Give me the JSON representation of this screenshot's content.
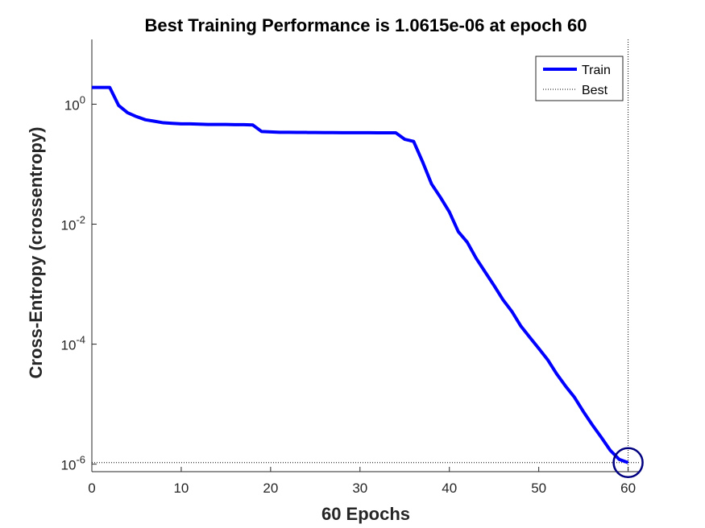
{
  "chart_data": {
    "type": "line",
    "title": "Best Training Performance is 1.0615e-06 at epoch 60",
    "xlabel": "60 Epochs",
    "ylabel": "Cross-Entropy  (crossentropy)",
    "xlim": [
      0,
      61.3
    ],
    "ylim": [
      7.5e-07,
      12
    ],
    "yscale": "log",
    "grid": false,
    "legend_position": "top-right",
    "x_ticks": [
      {
        "value": 0,
        "label": "0"
      },
      {
        "value": 10,
        "label": "10"
      },
      {
        "value": 20,
        "label": "20"
      },
      {
        "value": 30,
        "label": "30"
      },
      {
        "value": 40,
        "label": "40"
      },
      {
        "value": 50,
        "label": "50"
      },
      {
        "value": 60,
        "label": "60"
      }
    ],
    "y_ticks": [
      {
        "value": 1,
        "base": "10",
        "exp": "0"
      },
      {
        "value": 0.01,
        "base": "10",
        "exp": "-2"
      },
      {
        "value": 0.0001,
        "base": "10",
        "exp": "-4"
      },
      {
        "value": 1e-06,
        "base": "10",
        "exp": "-6"
      }
    ],
    "series": [
      {
        "name": "Train",
        "color": "#0000ff",
        "x": [
          0,
          1,
          2,
          3,
          4,
          5,
          6,
          7,
          8,
          9,
          10,
          11,
          12,
          13,
          14,
          15,
          16,
          17,
          18,
          19,
          20,
          21,
          22,
          23,
          24,
          25,
          26,
          27,
          28,
          29,
          30,
          31,
          32,
          33,
          34,
          35,
          36,
          37,
          38,
          39,
          40,
          41,
          42,
          43,
          44,
          45,
          46,
          47,
          48,
          49,
          50,
          51,
          52,
          53,
          54,
          55,
          56,
          57,
          58,
          59,
          60
        ],
        "y": [
          1.9,
          1.9,
          1.9,
          0.95,
          0.72,
          0.62,
          0.55,
          0.52,
          0.49,
          0.48,
          0.47,
          0.47,
          0.465,
          0.46,
          0.46,
          0.46,
          0.455,
          0.455,
          0.45,
          0.35,
          0.345,
          0.34,
          0.34,
          0.338,
          0.338,
          0.337,
          0.336,
          0.336,
          0.335,
          0.335,
          0.335,
          0.335,
          0.334,
          0.334,
          0.334,
          0.26,
          0.24,
          0.11,
          0.047,
          0.028,
          0.016,
          0.0075,
          0.005,
          0.0027,
          0.0016,
          0.00095,
          0.00055,
          0.00035,
          0.0002,
          0.00013,
          8.5e-05,
          5.5e-05,
          3.2e-05,
          2e-05,
          1.3e-05,
          7.5e-06,
          4.5e-06,
          2.8e-06,
          1.7e-06,
          1.2e-06,
          1.0615e-06
        ]
      }
    ],
    "best": {
      "name": "Best",
      "epoch": 60,
      "value": 1.0615e-06,
      "line_color": "#000000",
      "marker_color": "#000080"
    }
  }
}
